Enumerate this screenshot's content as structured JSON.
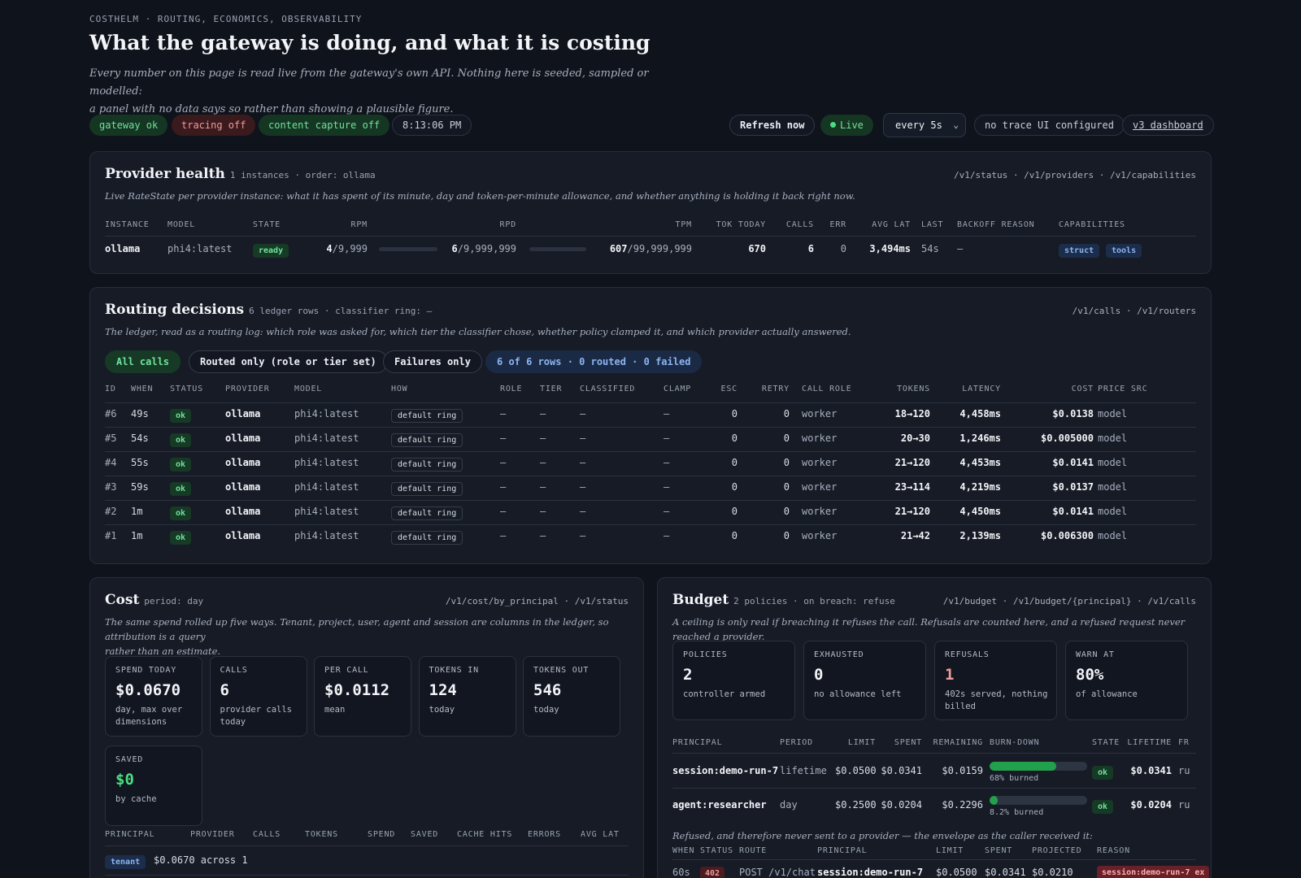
{
  "header": {
    "eyebrow": "COSTHELM · ROUTING, ECONOMICS, OBSERVABILITY",
    "title": "What the gateway is doing, and what it is costing",
    "lead_line1": "Every number on this page is read live from the gateway's own API. Nothing here is seeded, sampled or modelled:",
    "lead_line2": "a panel with no data says so rather than showing a plausible figure."
  },
  "status_bar": {
    "gateway": "gateway ok",
    "tracing": "tracing off",
    "capture": "content capture off",
    "time": "8:13:06 PM",
    "refresh_label": "Refresh now",
    "live_label": "Live",
    "interval": "every 5s",
    "trace_ui": "no trace UI configured",
    "dashboard_link": "v3 dashboard",
    "colors": {
      "ok": "#6fe39c",
      "off": "#f29a9a"
    }
  },
  "provider_health": {
    "title": "Provider health",
    "subtitle": "1 instances · order: ollama",
    "endpoints": "/v1/status · /v1/providers · /v1/capabilities",
    "description": "Live RateState per provider instance: what it has spent of its minute, day and token-per-minute allowance, and whether anything is holding it back right now.",
    "columns": [
      "INSTANCE",
      "MODEL",
      "STATE",
      "RPM",
      "RPD",
      "TPM",
      "TOK TODAY",
      "CALLS",
      "ERR",
      "AVG LAT",
      "LAST",
      "BACKOFF REASON",
      "CAPABILITIES"
    ],
    "row": {
      "instance": "ollama",
      "model": "phi4:latest",
      "state": "ready",
      "rpm_used": "4",
      "rpm_limit": "/9,999",
      "rpd_used": "6",
      "rpd_limit": "/9,999,999",
      "tpm_used": "607",
      "tpm_limit": "/99,999,999",
      "tok_today": "670",
      "calls": "6",
      "err": "0",
      "avg_lat": "3,494ms",
      "last": "54s",
      "backoff": "—",
      "capabilities": [
        "struct",
        "tools"
      ]
    }
  },
  "routing": {
    "title": "Routing decisions",
    "subtitle": "6 ledger rows · classifier ring: —",
    "endpoints": "/v1/calls · /v1/routers",
    "description": "The ledger, read as a routing log: which role was asked for, which tier the classifier chose, whether policy clamped it, and which provider actually answered.",
    "filters": [
      "All calls",
      "Routed only (role or tier set)",
      "Failures only"
    ],
    "summary": "6 of 6 rows · 0 routed · 0 failed",
    "columns": [
      "ID",
      "WHEN",
      "STATUS",
      "PROVIDER",
      "MODEL",
      "HOW",
      "ROLE",
      "TIER",
      "CLASSIFIED",
      "CLAMP",
      "ESC",
      "RETRY",
      "CALL ROLE",
      "TOKENS",
      "LATENCY",
      "COST",
      "PRICE SRC"
    ],
    "rows": [
      {
        "id": "#6",
        "when": "49s",
        "status": "ok",
        "provider": "ollama",
        "model": "phi4:latest",
        "how": "default ring",
        "role": "—",
        "tier": "—",
        "classified": "—",
        "clamp": "—",
        "esc": "0",
        "retry": "0",
        "call_role": "worker",
        "tokens": "18→120",
        "latency": "4,458ms",
        "cost": "$0.0138",
        "price_src": "model"
      },
      {
        "id": "#5",
        "when": "54s",
        "status": "ok",
        "provider": "ollama",
        "model": "phi4:latest",
        "how": "default ring",
        "role": "—",
        "tier": "—",
        "classified": "—",
        "clamp": "—",
        "esc": "0",
        "retry": "0",
        "call_role": "worker",
        "tokens": "20→30",
        "latency": "1,246ms",
        "cost": "$0.005000",
        "price_src": "model"
      },
      {
        "id": "#4",
        "when": "55s",
        "status": "ok",
        "provider": "ollama",
        "model": "phi4:latest",
        "how": "default ring",
        "role": "—",
        "tier": "—",
        "classified": "—",
        "clamp": "—",
        "esc": "0",
        "retry": "0",
        "call_role": "worker",
        "tokens": "21→120",
        "latency": "4,453ms",
        "cost": "$0.0141",
        "price_src": "model"
      },
      {
        "id": "#3",
        "when": "59s",
        "status": "ok",
        "provider": "ollama",
        "model": "phi4:latest",
        "how": "default ring",
        "role": "—",
        "tier": "—",
        "classified": "—",
        "clamp": "—",
        "esc": "0",
        "retry": "0",
        "call_role": "worker",
        "tokens": "23→114",
        "latency": "4,219ms",
        "cost": "$0.0137",
        "price_src": "model"
      },
      {
        "id": "#2",
        "when": "1m",
        "status": "ok",
        "provider": "ollama",
        "model": "phi4:latest",
        "how": "default ring",
        "role": "—",
        "tier": "—",
        "classified": "—",
        "clamp": "—",
        "esc": "0",
        "retry": "0",
        "call_role": "worker",
        "tokens": "21→120",
        "latency": "4,450ms",
        "cost": "$0.0141",
        "price_src": "model"
      },
      {
        "id": "#1",
        "when": "1m",
        "status": "ok",
        "provider": "ollama",
        "model": "phi4:latest",
        "how": "default ring",
        "role": "—",
        "tier": "—",
        "classified": "—",
        "clamp": "—",
        "esc": "0",
        "retry": "0",
        "call_role": "worker",
        "tokens": "21→42",
        "latency": "2,139ms",
        "cost": "$0.006300",
        "price_src": "model"
      }
    ]
  },
  "cost": {
    "title": "Cost",
    "subtitle": "period: day",
    "endpoints": "/v1/cost/by_principal · /v1/status",
    "description_line1": "The same spend rolled up five ways. Tenant, project, user, agent and session are columns in the ledger, so attribution is a query",
    "description_line2": "rather than an estimate.",
    "stats": [
      {
        "label": "SPEND TODAY",
        "value": "$0.0670",
        "note": "day, max over dimensions"
      },
      {
        "label": "CALLS",
        "value": "6",
        "note": "provider calls today"
      },
      {
        "label": "PER CALL",
        "value": "$0.0112",
        "note": "mean"
      },
      {
        "label": "TOKENS IN",
        "value": "124",
        "note": "today"
      },
      {
        "label": "TOKENS OUT",
        "value": "546",
        "note": "today"
      },
      {
        "label": "SAVED",
        "value": "$0",
        "note": "by cache"
      }
    ],
    "columns": [
      "PRINCIPAL",
      "PROVIDER",
      "CALLS",
      "TOKENS",
      "SPEND",
      "SAVED",
      "CACHE HITS",
      "ERRORS",
      "AVG LAT"
    ],
    "group_tag": "tenant",
    "group_text": "$0.0670 across 1"
  },
  "budget": {
    "title": "Budget",
    "subtitle": "2 policies · on breach: refuse",
    "endpoints": "/v1/budget · /v1/budget/{principal} · /v1/calls",
    "description": "A ceiling is only real if breaching it refuses the call. Refusals are counted here, and a refused request never reached a provider.",
    "stats": [
      {
        "label": "POLICIES",
        "value": "2",
        "note": "controller armed"
      },
      {
        "label": "EXHAUSTED",
        "value": "0",
        "note": "no allowance left"
      },
      {
        "label": "REFUSALS",
        "value": "1",
        "note": "402s served, nothing billed"
      },
      {
        "label": "WARN AT",
        "value": "80%",
        "note": "of allowance"
      }
    ],
    "columns": [
      "PRINCIPAL",
      "PERIOD",
      "LIMIT",
      "SPENT",
      "REMAINING",
      "BURN-DOWN",
      "STATE",
      "LIFETIME",
      "FR"
    ],
    "rows": [
      {
        "principal": "session:demo-run-7",
        "period": "lifetime",
        "limit": "$0.0500",
        "spent": "$0.0341",
        "remaining": "$0.0159",
        "burn": 0.68,
        "burn_label": "68% burned",
        "state": "ok",
        "lifetime": "$0.0341",
        "fr": "ru"
      },
      {
        "principal": "agent:researcher",
        "period": "day",
        "limit": "$0.2500",
        "spent": "$0.0204",
        "remaining": "$0.2296",
        "burn": 0.082,
        "burn_label": "8.2% burned",
        "state": "ok",
        "lifetime": "$0.0204",
        "fr": "ru"
      }
    ],
    "refused_caption": "Refused, and therefore never sent to a provider — the envelope as the caller received it:",
    "refused_columns": [
      "WHEN",
      "STATUS",
      "ROUTE",
      "PRINCIPAL",
      "LIMIT",
      "SPENT",
      "PROJECTED",
      "REASON"
    ],
    "refused_row": {
      "when": "60s",
      "status": "402",
      "route": "POST /v1/chat",
      "principal": "session:demo-run-7",
      "limit": "$0.0500",
      "spent": "$0.0341",
      "projected": "$0.0210",
      "reason": "session:demo-run-7 ex"
    }
  }
}
